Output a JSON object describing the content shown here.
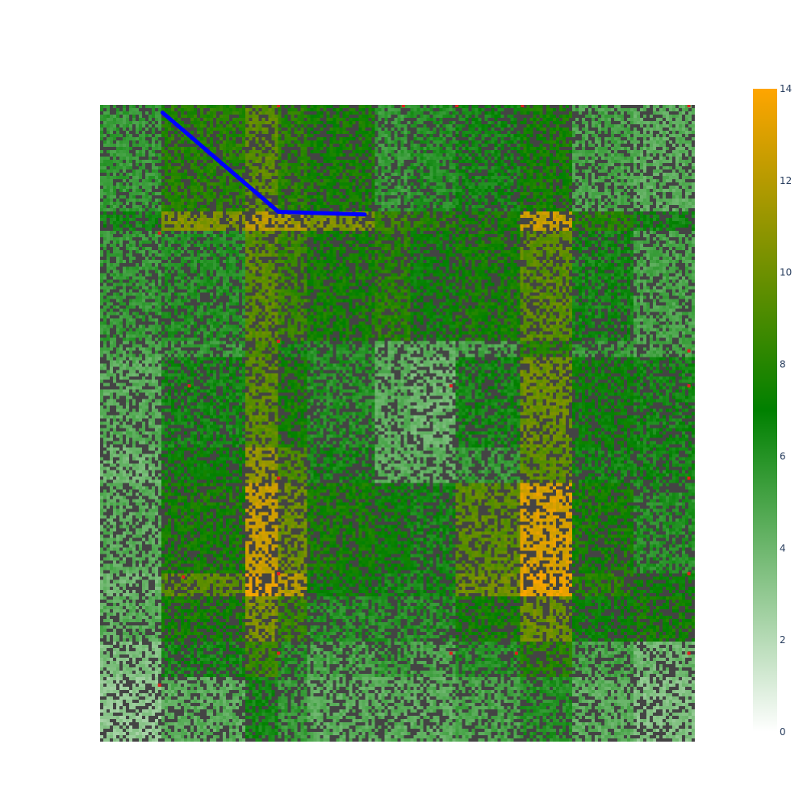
{
  "chart_data": {
    "type": "heatmap",
    "title": "",
    "xlabel": "",
    "ylabel": "",
    "grid": false,
    "colorscale": [
      [
        0.0,
        "#ffffff"
      ],
      [
        0.5,
        "#008000"
      ],
      [
        1.0,
        "#ffa500"
      ]
    ],
    "zmin": 0,
    "zmax": 14,
    "colorbar": {
      "ticks": [
        0,
        2,
        4,
        6,
        8,
        10,
        12,
        14
      ],
      "tick_labels": [
        "0",
        "2",
        "4",
        "6",
        "8",
        "10",
        "12",
        "14"
      ]
    },
    "speckle_color": "#444444",
    "marker_color": "#e02020",
    "path_color": "#0000ff",
    "x_breaks": [
      0,
      0.105,
      0.245,
      0.3,
      0.35,
      0.46,
      0.52,
      0.6,
      0.705,
      0.795,
      0.895,
      1.0
    ],
    "y_breaks": [
      0,
      0.168,
      0.2,
      0.37,
      0.395,
      0.54,
      0.595,
      0.735,
      0.77,
      0.845,
      0.9,
      1.0
    ],
    "block_values": [
      [
        5.5,
        8.0,
        9.5,
        8.0,
        7.5,
        5.5,
        6.0,
        6.5,
        7.5,
        5.0,
        4.5
      ],
      [
        6.5,
        10.5,
        12.0,
        11.5,
        10.5,
        8.5,
        8.0,
        7.5,
        12.5,
        8.0,
        6.5
      ],
      [
        5.5,
        6.0,
        9.5,
        8.5,
        7.5,
        8.0,
        7.0,
        7.5,
        9.5,
        6.5,
        5.0
      ],
      [
        5.0,
        5.5,
        9.0,
        6.5,
        6.0,
        4.5,
        4.5,
        5.0,
        8.0,
        5.5,
        5.0
      ],
      [
        4.5,
        6.5,
        9.5,
        7.5,
        6.0,
        4.5,
        4.0,
        6.5,
        10.0,
        7.0,
        6.5
      ],
      [
        4.0,
        7.0,
        11.0,
        9.0,
        6.5,
        4.5,
        4.5,
        5.5,
        9.5,
        6.5,
        6.5
      ],
      [
        4.5,
        7.5,
        12.5,
        10.0,
        7.5,
        7.0,
        6.5,
        9.5,
        13.0,
        7.5,
        6.0
      ],
      [
        4.0,
        9.5,
        13.5,
        12.0,
        7.0,
        6.5,
        6.5,
        10.0,
        13.5,
        8.0,
        7.0
      ],
      [
        4.5,
        7.5,
        10.5,
        8.5,
        6.0,
        6.0,
        6.0,
        7.5,
        10.0,
        7.0,
        7.5
      ],
      [
        3.5,
        6.5,
        8.5,
        6.0,
        5.0,
        5.5,
        5.0,
        6.0,
        8.0,
        5.0,
        4.0
      ],
      [
        3.0,
        4.5,
        6.5,
        5.5,
        4.5,
        4.5,
        4.5,
        5.0,
        6.0,
        4.5,
        3.5
      ]
    ],
    "markers": [
      [
        0.3,
        0.0
      ],
      [
        0.51,
        0.0
      ],
      [
        0.6,
        0.0
      ],
      [
        0.71,
        0.0
      ],
      [
        0.99,
        0.0
      ],
      [
        0.1,
        0.2
      ],
      [
        0.3,
        0.37
      ],
      [
        0.99,
        0.385
      ],
      [
        0.15,
        0.44
      ],
      [
        0.59,
        0.44
      ],
      [
        0.99,
        0.44
      ],
      [
        0.3,
        0.585
      ],
      [
        0.99,
        0.585
      ],
      [
        0.14,
        0.74
      ],
      [
        0.3,
        0.735
      ],
      [
        0.99,
        0.735
      ],
      [
        0.3,
        0.86
      ],
      [
        0.59,
        0.86
      ],
      [
        0.7,
        0.86
      ],
      [
        0.99,
        0.86
      ],
      [
        0.1,
        0.91
      ]
    ],
    "path": {
      "x": [
        0.105,
        0.3,
        0.445
      ],
      "y": [
        0.012,
        0.168,
        0.172
      ]
    }
  }
}
